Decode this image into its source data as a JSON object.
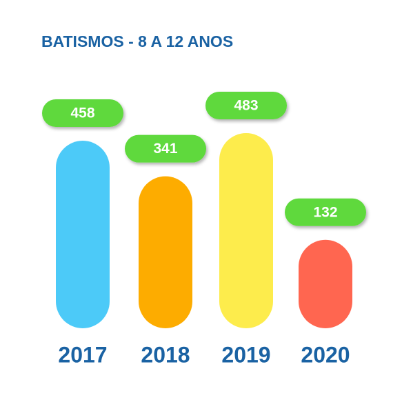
{
  "chart_data": {
    "type": "bar",
    "title": "BATISMOS - 8 A 12 ANOS",
    "categories": [
      "2017",
      "2018",
      "2019",
      "2020"
    ],
    "values": [
      458,
      341,
      483,
      132
    ],
    "colors": [
      "#4ccaf8",
      "#fdac00",
      "#fdec4c",
      "#ff6650"
    ],
    "label_color": "#5ed93c"
  }
}
